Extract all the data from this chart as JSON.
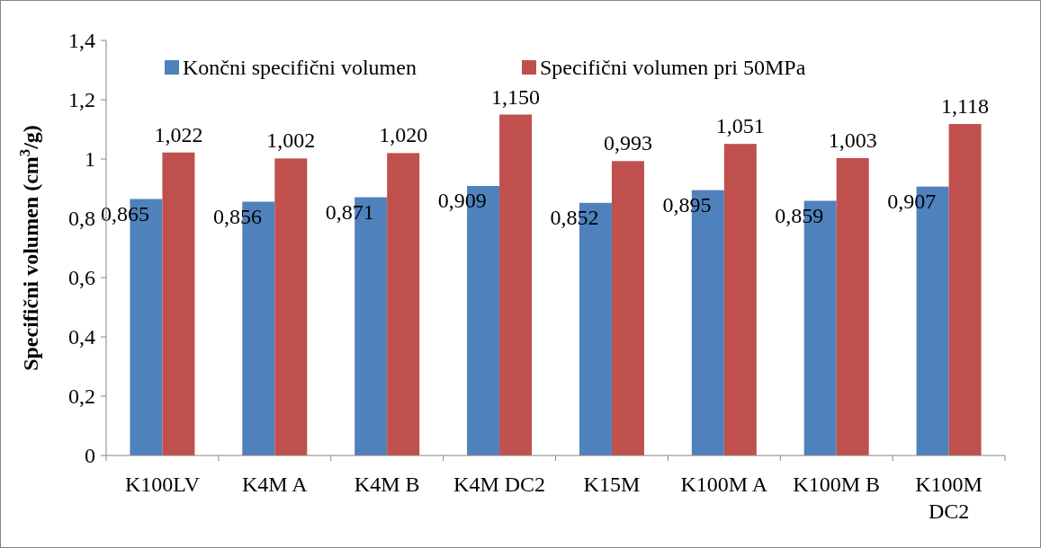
{
  "chart_data": {
    "type": "bar",
    "ylabel": "Specifični volumen (cm$^{3}$/g)",
    "categories": [
      "K100LV",
      "K4M A",
      "K4M B",
      "K4M DC2",
      "K15M",
      "K100M A",
      "K100M B",
      "K100M DC2"
    ],
    "series": [
      {
        "name": "Končni specifični volumen",
        "color": "#4f81bd",
        "values": [
          0.865,
          0.856,
          0.871,
          0.909,
          0.852,
          0.895,
          0.859,
          0.907
        ],
        "value_labels": [
          "0,865",
          "0,856",
          "0,871",
          "0,909",
          "0,852",
          "0,895",
          "0,859",
          "0,907"
        ]
      },
      {
        "name": "Specifični volumen pri 50MPa",
        "color": "#c0504d",
        "values": [
          1.022,
          1.002,
          1.02,
          1.15,
          0.993,
          1.051,
          1.003,
          1.118
        ],
        "value_labels": [
          "1,022",
          "1,002",
          "1,020",
          "1,150",
          "0,993",
          "1,051",
          "1,003",
          "1,118"
        ]
      }
    ],
    "ylim": [
      0,
      1.4
    ],
    "yticks": [
      0,
      {
        "value": 0.2,
        "label": "0,2"
      },
      {
        "value": 0.4,
        "label": "0,4"
      },
      {
        "value": 0.6,
        "label": "0,6"
      },
      {
        "value": 0.8,
        "label": "0,8"
      },
      1,
      {
        "value": 1.2,
        "label": "1,2"
      },
      {
        "value": 1.4,
        "label": "1,4"
      }
    ],
    "grid": false,
    "legend": "top"
  }
}
